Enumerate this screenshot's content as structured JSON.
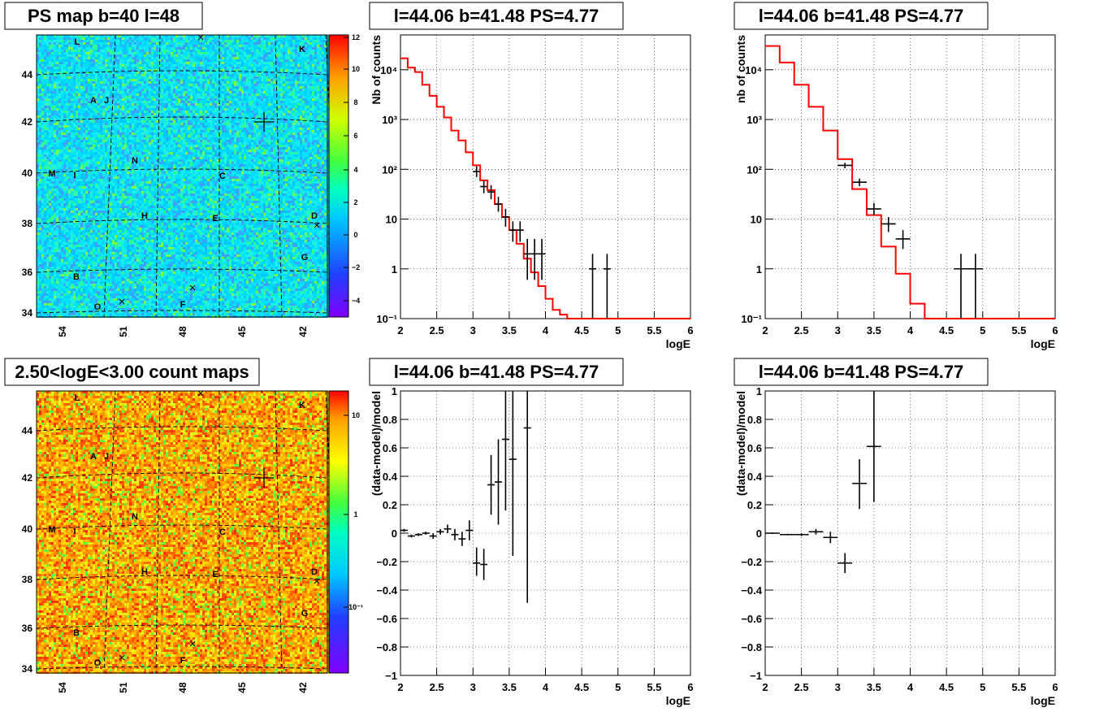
{
  "panels": {
    "map_top": {
      "title": "PS map b=40 l=48",
      "palette_ticks": [
        "12",
        "10",
        "8",
        "6",
        "4",
        "2",
        "0",
        "−2",
        "−4"
      ]
    },
    "map_bottom": {
      "title": "2.50<logE<3.00 count maps",
      "palette_ticks": [
        "10",
        "1",
        "10⁻¹"
      ]
    },
    "spec_a": {
      "title": "l=44.06 b=41.48 PS=4.77"
    },
    "spec_b": {
      "title": "l=44.06 b=41.48 PS=4.77"
    },
    "res_a": {
      "title": "l=44.06 b=41.48 PS=4.77"
    },
    "res_b": {
      "title": "l=44.06 b=41.48 PS=4.77"
    }
  },
  "map_axes": {
    "x_ticks": [
      "54",
      "51",
      "48",
      "45",
      "42"
    ],
    "y_ticks": [
      "44",
      "42",
      "40",
      "38",
      "36",
      "34"
    ]
  },
  "source_labels": [
    "L",
    "K",
    "A",
    "J",
    "N",
    "M",
    "I",
    "C",
    "H",
    "E",
    "D",
    "G",
    "B",
    "O",
    "F"
  ],
  "colors": {
    "data": "#000000",
    "model": "#ff0000",
    "grid": "#000000"
  },
  "chart_data": [
    {
      "type": "line",
      "title": "l=44.06 b=41.48 PS=4.77",
      "xlabel": "logE",
      "ylabel": "Nb of counts",
      "xlim": [
        2,
        6
      ],
      "ylim": [
        0.1,
        50000
      ],
      "yscale": "log",
      "grid": true,
      "x_ticks": [
        "2",
        "2.5",
        "3",
        "3.5",
        "4",
        "4.5",
        "5",
        "5.5",
        "6"
      ],
      "y_ticks": [
        "10⁻¹",
        "1",
        "10",
        "10²",
        "10³",
        "10⁴"
      ],
      "model_step": {
        "bin_edges": [
          2.0,
          2.1,
          2.2,
          2.3,
          2.4,
          2.5,
          2.6,
          2.7,
          2.8,
          2.9,
          3.0,
          3.1,
          3.2,
          3.3,
          3.4,
          3.5,
          3.6,
          3.7,
          3.8,
          3.9,
          4.0,
          4.1,
          4.2,
          4.3,
          6.0
        ],
        "values": [
          17000,
          11000,
          9000,
          5000,
          3000,
          1800,
          1100,
          600,
          380,
          220,
          120,
          60,
          38,
          20,
          11,
          6,
          3.2,
          1.6,
          0.85,
          0.45,
          0.25,
          0.15,
          0.12,
          0.1
        ]
      },
      "points": [
        {
          "x": 3.05,
          "dx": 0.05,
          "y": 90,
          "ylo": 70,
          "yhi": 115
        },
        {
          "x": 3.15,
          "dx": 0.05,
          "y": 45,
          "ylo": 33,
          "yhi": 60
        },
        {
          "x": 3.25,
          "dx": 0.05,
          "y": 35,
          "ylo": 25,
          "yhi": 48
        },
        {
          "x": 3.35,
          "dx": 0.05,
          "y": 20,
          "ylo": 14,
          "yhi": 28
        },
        {
          "x": 3.45,
          "dx": 0.05,
          "y": 11,
          "ylo": 7,
          "yhi": 16
        },
        {
          "x": 3.55,
          "dx": 0.05,
          "y": 6,
          "ylo": 3.5,
          "yhi": 9
        },
        {
          "x": 3.65,
          "dx": 0.05,
          "y": 6,
          "ylo": 3.5,
          "yhi": 9
        },
        {
          "x": 3.75,
          "dx": 0.05,
          "y": 2,
          "ylo": 0.6,
          "yhi": 4
        },
        {
          "x": 3.85,
          "dx": 0.05,
          "y": 2,
          "ylo": 0.6,
          "yhi": 4
        },
        {
          "x": 3.95,
          "dx": 0.05,
          "y": 2,
          "ylo": 0.6,
          "yhi": 4
        },
        {
          "x": 4.65,
          "dx": 0.05,
          "y": 1,
          "ylo": 0.1,
          "yhi": 2
        },
        {
          "x": 4.85,
          "dx": 0.05,
          "y": 1,
          "ylo": 0.1,
          "yhi": 2
        }
      ]
    },
    {
      "type": "line",
      "title": "l=44.06 b=41.48 PS=4.77",
      "xlabel": "logE",
      "ylabel": "nb of counts",
      "xlim": [
        2,
        6
      ],
      "ylim": [
        0.1,
        50000
      ],
      "yscale": "log",
      "grid": true,
      "x_ticks": [
        "2",
        "2.5",
        "3",
        "3.5",
        "4",
        "4.5",
        "5",
        "5.5",
        "6"
      ],
      "y_ticks": [
        "10⁻¹",
        "1",
        "10",
        "10²",
        "10³",
        "10⁴"
      ],
      "model_step": {
        "bin_edges": [
          2.0,
          2.2,
          2.4,
          2.6,
          2.8,
          3.0,
          3.2,
          3.4,
          3.6,
          3.8,
          4.0,
          4.2,
          6.0
        ],
        "values": [
          30000,
          14000,
          5000,
          1800,
          600,
          160,
          40,
          12,
          2.8,
          0.8,
          0.2,
          0.1
        ]
      },
      "points": [
        {
          "x": 3.1,
          "dx": 0.1,
          "y": 120,
          "ylo": 105,
          "yhi": 135
        },
        {
          "x": 3.3,
          "dx": 0.1,
          "y": 55,
          "ylo": 46,
          "yhi": 65
        },
        {
          "x": 3.5,
          "dx": 0.1,
          "y": 16,
          "ylo": 12,
          "yhi": 21
        },
        {
          "x": 3.7,
          "dx": 0.1,
          "y": 8,
          "ylo": 5.5,
          "yhi": 11
        },
        {
          "x": 3.9,
          "dx": 0.1,
          "y": 4,
          "ylo": 2.5,
          "yhi": 6
        },
        {
          "x": 4.7,
          "dx": 0.1,
          "y": 1,
          "ylo": 0.1,
          "yhi": 2
        },
        {
          "x": 4.9,
          "dx": 0.1,
          "y": 1,
          "ylo": 0.1,
          "yhi": 2
        }
      ]
    },
    {
      "type": "scatter",
      "title": "l=44.06 b=41.48 PS=4.77",
      "xlabel": "logE",
      "ylabel": "(data-model)/model",
      "xlim": [
        2,
        6
      ],
      "ylim": [
        -1,
        1
      ],
      "grid": true,
      "x_ticks": [
        "2",
        "2.5",
        "3",
        "3.5",
        "4",
        "4.5",
        "5",
        "5.5",
        "6"
      ],
      "y_ticks": [
        "−1",
        "−0.8",
        "−0.6",
        "−0.4",
        "−0.2",
        "0",
        "0.2",
        "0.4",
        "0.6",
        "0.8",
        "1"
      ],
      "points": [
        {
          "x": 2.05,
          "dx": 0.05,
          "y": 0.02,
          "ylo": 0.01,
          "yhi": 0.03
        },
        {
          "x": 2.15,
          "dx": 0.05,
          "y": -0.02,
          "ylo": -0.03,
          "yhi": -0.01
        },
        {
          "x": 2.25,
          "dx": 0.05,
          "y": -0.01,
          "ylo": -0.02,
          "yhi": 0.0
        },
        {
          "x": 2.35,
          "dx": 0.05,
          "y": 0.0,
          "ylo": -0.01,
          "yhi": 0.01
        },
        {
          "x": 2.45,
          "dx": 0.05,
          "y": -0.02,
          "ylo": -0.04,
          "yhi": 0.0
        },
        {
          "x": 2.55,
          "dx": 0.05,
          "y": 0.01,
          "ylo": -0.01,
          "yhi": 0.03
        },
        {
          "x": 2.65,
          "dx": 0.05,
          "y": 0.03,
          "ylo": 0.0,
          "yhi": 0.06
        },
        {
          "x": 2.75,
          "dx": 0.05,
          "y": -0.01,
          "ylo": -0.05,
          "yhi": 0.03
        },
        {
          "x": 2.85,
          "dx": 0.05,
          "y": -0.04,
          "ylo": -0.09,
          "yhi": 0.01
        },
        {
          "x": 2.95,
          "dx": 0.05,
          "y": 0.02,
          "ylo": -0.05,
          "yhi": 0.09
        },
        {
          "x": 3.05,
          "dx": 0.05,
          "y": -0.21,
          "ylo": -0.3,
          "yhi": -0.1
        },
        {
          "x": 3.15,
          "dx": 0.05,
          "y": -0.22,
          "ylo": -0.33,
          "yhi": -0.11
        },
        {
          "x": 3.25,
          "dx": 0.05,
          "y": 0.34,
          "ylo": 0.13,
          "yhi": 0.55
        },
        {
          "x": 3.35,
          "dx": 0.05,
          "y": 0.36,
          "ylo": 0.06,
          "yhi": 0.66
        },
        {
          "x": 3.45,
          "dx": 0.05,
          "y": 0.66,
          "ylo": 0.16,
          "yhi": 1.0
        },
        {
          "x": 3.55,
          "dx": 0.05,
          "y": 0.52,
          "ylo": -0.16,
          "yhi": 1.0
        },
        {
          "x": 3.75,
          "dx": 0.05,
          "y": 0.74,
          "ylo": -0.49,
          "yhi": 1.0
        }
      ]
    },
    {
      "type": "scatter",
      "title": "l=44.06 b=41.48 PS=4.77",
      "xlabel": "logE",
      "ylabel": "(data-model)/model",
      "xlim": [
        2,
        6
      ],
      "ylim": [
        -1,
        1
      ],
      "grid": true,
      "x_ticks": [
        "2",
        "2.5",
        "3",
        "3.5",
        "4",
        "4.5",
        "5",
        "5.5",
        "6"
      ],
      "y_ticks": [
        "−1",
        "−0.8",
        "−0.6",
        "−0.4",
        "−0.2",
        "0",
        "0.2",
        "0.4",
        "0.6",
        "0.8",
        "1"
      ],
      "points": [
        {
          "x": 2.1,
          "dx": 0.1,
          "y": 0.0,
          "ylo": -0.005,
          "yhi": 0.005
        },
        {
          "x": 2.3,
          "dx": 0.1,
          "y": -0.01,
          "ylo": -0.015,
          "yhi": -0.005
        },
        {
          "x": 2.5,
          "dx": 0.1,
          "y": -0.01,
          "ylo": -0.02,
          "yhi": 0.0
        },
        {
          "x": 2.7,
          "dx": 0.1,
          "y": 0.01,
          "ylo": -0.01,
          "yhi": 0.03
        },
        {
          "x": 2.9,
          "dx": 0.1,
          "y": -0.03,
          "ylo": -0.07,
          "yhi": 0.01
        },
        {
          "x": 3.1,
          "dx": 0.1,
          "y": -0.21,
          "ylo": -0.28,
          "yhi": -0.14
        },
        {
          "x": 3.3,
          "dx": 0.1,
          "y": 0.35,
          "ylo": 0.17,
          "yhi": 0.52
        },
        {
          "x": 3.5,
          "dx": 0.1,
          "y": 0.61,
          "ylo": 0.22,
          "yhi": 1.0
        }
      ]
    }
  ]
}
